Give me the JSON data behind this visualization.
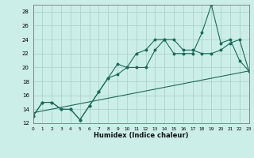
{
  "title": "",
  "xlabel": "Humidex (Indice chaleur)",
  "xlim": [
    0,
    23
  ],
  "ylim": [
    12,
    29
  ],
  "yticks": [
    12,
    14,
    16,
    18,
    20,
    22,
    24,
    26,
    28
  ],
  "xticks": [
    0,
    1,
    2,
    3,
    4,
    5,
    6,
    7,
    8,
    9,
    10,
    11,
    12,
    13,
    14,
    15,
    16,
    17,
    18,
    19,
    20,
    21,
    22,
    23
  ],
  "bg_color": "#cceee8",
  "grid_color": "#aad4cc",
  "line_color": "#1a6b5a",
  "line1_x": [
    0,
    1,
    2,
    3,
    4,
    5,
    6,
    7,
    8,
    9,
    10,
    11,
    12,
    13,
    14,
    15,
    16,
    17,
    18,
    19,
    20,
    21,
    22,
    23
  ],
  "line1_y": [
    13.0,
    15.0,
    15.0,
    14.0,
    14.0,
    12.5,
    14.5,
    16.5,
    18.5,
    20.5,
    20.0,
    20.0,
    20.0,
    22.5,
    24.0,
    24.0,
    22.5,
    22.5,
    22.0,
    22.0,
    22.5,
    23.5,
    24.0,
    19.5
  ],
  "line2_x": [
    0,
    1,
    2,
    3,
    4,
    5,
    6,
    7,
    8,
    9,
    10,
    11,
    12,
    13,
    14,
    15,
    16,
    17,
    18,
    19,
    20,
    21,
    22,
    23
  ],
  "line2_y": [
    13.0,
    15.0,
    15.0,
    14.0,
    14.0,
    12.5,
    14.5,
    16.5,
    18.5,
    19.0,
    20.0,
    22.0,
    22.5,
    24.0,
    24.0,
    22.0,
    22.0,
    22.0,
    25.0,
    29.0,
    23.5,
    24.0,
    21.0,
    19.5
  ],
  "line3_x": [
    0,
    23
  ],
  "line3_y": [
    13.5,
    19.5
  ]
}
